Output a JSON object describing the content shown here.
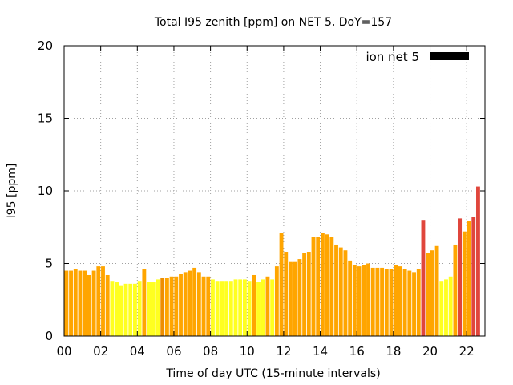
{
  "chart_data": {
    "type": "bar",
    "title": "Total I95 zenith [ppm] on NET 5, DoY=157",
    "xlabel": "Time of day UTC (15-minute intervals)",
    "ylabel": "I95 [ppm]",
    "xlim": [
      0,
      23
    ],
    "ylim": [
      0,
      20
    ],
    "xticks": [
      "00",
      "02",
      "04",
      "06",
      "08",
      "10",
      "12",
      "14",
      "16",
      "18",
      "20",
      "22"
    ],
    "xtick_values": [
      0,
      2,
      4,
      6,
      8,
      10,
      12,
      14,
      16,
      18,
      20,
      22
    ],
    "yticks": [
      "0",
      "5",
      "10",
      "15",
      "20"
    ],
    "ytick_values": [
      0,
      5,
      10,
      15,
      20
    ],
    "grid": true,
    "grid_style": "dotted",
    "legend": {
      "label": "ion net 5",
      "position": "top-right",
      "color": "#000000"
    },
    "bar_interval_hours": 0.25,
    "colors": {
      "orange": "#ffa500",
      "yellow": "#ffff20",
      "red": "#e0463c",
      "dark_orange": "#ee8e00"
    },
    "series": [
      {
        "values": [
          4.5,
          4.5,
          4.6,
          4.5,
          4.5,
          4.2,
          4.5,
          4.8,
          4.8,
          4.2,
          3.8,
          3.7,
          3.5,
          3.6,
          3.6,
          3.6,
          3.8,
          4.6,
          3.7,
          3.7,
          3.9,
          4.0,
          4.0,
          4.1,
          4.1,
          4.3,
          4.4,
          4.5,
          4.7,
          4.4,
          4.1,
          4.1,
          3.9,
          3.8,
          3.8,
          3.8,
          3.8,
          3.9,
          3.9,
          3.9,
          3.8,
          4.2,
          3.7,
          3.9,
          4.1,
          3.9,
          4.8,
          7.1,
          5.8,
          5.1,
          5.1,
          5.3,
          5.7,
          5.8,
          6.8,
          6.8,
          7.1,
          7.0,
          6.8,
          6.3,
          6.1,
          5.9,
          5.2,
          4.9,
          4.8,
          4.9,
          5.0,
          4.7,
          4.7,
          4.7,
          4.6,
          4.6,
          4.9,
          4.8,
          4.6,
          4.5,
          4.4,
          4.6,
          8.0,
          5.7,
          5.9,
          6.2,
          3.8,
          3.9,
          4.1,
          6.3,
          8.1,
          7.2,
          7.9,
          8.2,
          10.3
        ],
        "colors": [
          "orange",
          "orange",
          "orange",
          "orange",
          "orange",
          "orange",
          "orange",
          "orange",
          "orange",
          "orange",
          "yellow",
          "yellow",
          "yellow",
          "yellow",
          "yellow",
          "yellow",
          "yellow",
          "orange",
          "yellow",
          "yellow",
          "yellow",
          "dark_orange",
          "orange",
          "orange",
          "orange",
          "orange",
          "orange",
          "orange",
          "orange",
          "orange",
          "orange",
          "orange",
          "yellow",
          "yellow",
          "yellow",
          "yellow",
          "yellow",
          "yellow",
          "yellow",
          "yellow",
          "yellow",
          "orange",
          "yellow",
          "yellow",
          "orange",
          "yellow",
          "orange",
          "orange",
          "orange",
          "orange",
          "orange",
          "orange",
          "orange",
          "orange",
          "orange",
          "orange",
          "orange",
          "orange",
          "orange",
          "orange",
          "orange",
          "orange",
          "orange",
          "orange",
          "orange",
          "orange",
          "orange",
          "orange",
          "orange",
          "orange",
          "orange",
          "orange",
          "orange",
          "orange",
          "orange",
          "orange",
          "orange",
          "orange",
          "red",
          "orange",
          "orange",
          "orange",
          "yellow",
          "yellow",
          "yellow",
          "orange",
          "red",
          "orange",
          "orange",
          "red",
          "red"
        ]
      }
    ]
  }
}
